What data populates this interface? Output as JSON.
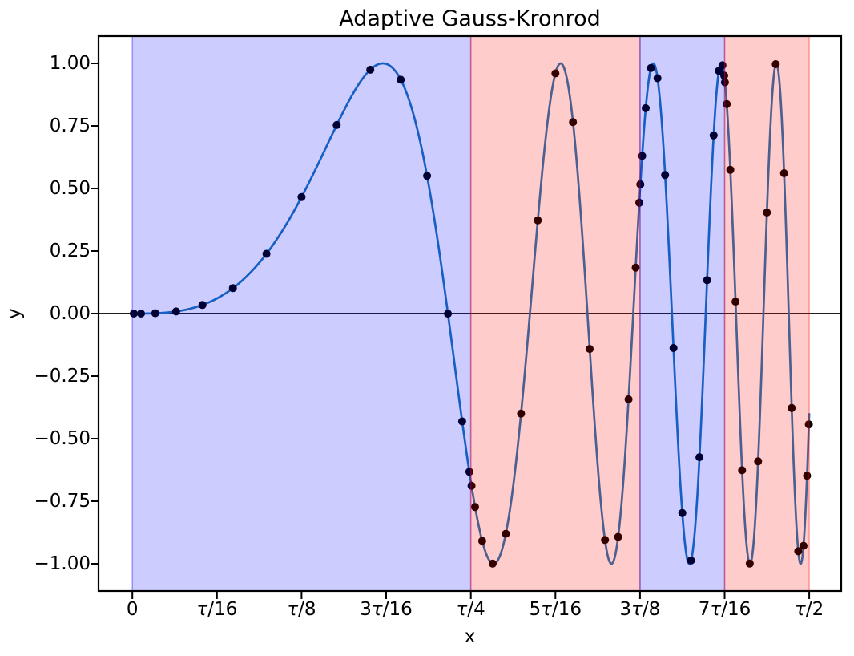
{
  "chart_data": {
    "type": "line",
    "title": "Adaptive Gauss-Kronrod",
    "xlabel": "x",
    "ylabel": "y",
    "function": "sin(x^3)",
    "x_domain_rad": [
      0,
      3.14159265
    ],
    "xlim_rad": [
      -0.157,
      3.29
    ],
    "ylim": [
      -1.109,
      1.109
    ],
    "grid": false,
    "legend": "none",
    "curve_color": "#1f77b4",
    "point_color": "#000000",
    "zero_line_color": "#000000",
    "region_alpha": 0.2,
    "region_colors": {
      "blue": "0,0,255",
      "red": "255,0,0"
    },
    "x_ticks": [
      {
        "v": 0.0,
        "label": "0"
      },
      {
        "v": 0.3926991,
        "label": "τ/16"
      },
      {
        "v": 0.7853982,
        "label": "τ/8"
      },
      {
        "v": 1.1780972,
        "label": "3τ/16"
      },
      {
        "v": 1.5707963,
        "label": "τ/4"
      },
      {
        "v": 1.9634954,
        "label": "5τ/16"
      },
      {
        "v": 2.3561945,
        "label": "3τ/8"
      },
      {
        "v": 2.7488936,
        "label": "7τ/16"
      },
      {
        "v": 3.1415927,
        "label": "τ/2"
      }
    ],
    "y_ticks": [
      {
        "v": 1.0,
        "label": "1.00"
      },
      {
        "v": 0.75,
        "label": "0.75"
      },
      {
        "v": 0.5,
        "label": "0.50"
      },
      {
        "v": 0.25,
        "label": "0.25"
      },
      {
        "v": 0.0,
        "label": "0.00"
      },
      {
        "v": -0.25,
        "label": "−0.25"
      },
      {
        "v": -0.5,
        "label": "−0.50"
      },
      {
        "v": -0.75,
        "label": "−0.75"
      },
      {
        "v": -1.0,
        "label": "−1.00"
      }
    ],
    "regions": [
      {
        "start_rad": 0.0,
        "end_rad": 1.5707963,
        "color": "blue",
        "span": "0 to τ/4"
      },
      {
        "start_rad": 1.5707963,
        "end_rad": 2.3561945,
        "color": "red",
        "span": "τ/4 to 3τ/8"
      },
      {
        "start_rad": 2.3561945,
        "end_rad": 2.7488936,
        "color": "blue",
        "span": "3τ/8 to 7τ/16"
      },
      {
        "start_rad": 2.7488936,
        "end_rad": 3.1415927,
        "color": "red",
        "span": "7τ/16 to τ/2"
      }
    ],
    "evaluation_points": [
      [
        0.00671,
        0.0
      ],
      [
        0.03997,
        0.0001
      ],
      [
        0.10614,
        0.0012
      ],
      [
        0.20301,
        0.0084
      ],
      [
        0.32511,
        0.0344
      ],
      [
        0.46668,
        0.1016
      ],
      [
        0.62233,
        0.2387
      ],
      [
        0.7854,
        0.4657
      ],
      [
        0.94857,
        0.7536
      ],
      [
        1.10412,
        0.9746
      ],
      [
        1.24569,
        0.9347
      ],
      [
        1.36779,
        0.5502
      ],
      [
        1.46466,
        -0.0004
      ],
      [
        1.53083,
        -0.4312
      ],
      [
        1.56409,
        -0.6325
      ],
      [
        1.57415,
        -0.6883
      ],
      [
        1.59078,
        -0.7731
      ],
      [
        1.62387,
        -0.9088
      ],
      [
        1.67229,
        -0.9994
      ],
      [
        1.73333,
        -0.8802
      ],
      [
        1.80412,
        -0.3996
      ],
      [
        1.8819,
        0.3725
      ],
      [
        1.9635,
        0.9599
      ],
      [
        2.0451,
        0.7653
      ],
      [
        2.12288,
        -0.1414
      ],
      [
        2.19367,
        -0.9049
      ],
      [
        2.25471,
        -0.8927
      ],
      [
        2.30313,
        -0.3425
      ],
      [
        2.33622,
        0.1837
      ],
      [
        2.35285,
        0.4429
      ],
      [
        2.35787,
        0.5162
      ],
      [
        2.36619,
        0.6301
      ],
      [
        2.38273,
        0.8209
      ],
      [
        2.40694,
        0.9815
      ],
      [
        2.43746,
        0.9406
      ],
      [
        2.47285,
        0.5534
      ],
      [
        2.51174,
        -0.1378
      ],
      [
        2.55254,
        -0.7975
      ],
      [
        2.59334,
        -0.9868
      ],
      [
        2.63223,
        -0.5742
      ],
      [
        2.66762,
        0.1334
      ],
      [
        2.69814,
        0.7123
      ],
      [
        2.72235,
        0.9701
      ],
      [
        2.73889,
        0.9922
      ],
      [
        2.74721,
        0.9511
      ],
      [
        2.75057,
        0.9245
      ],
      [
        2.75889,
        0.8372
      ],
      [
        2.77543,
        0.5743
      ],
      [
        2.79964,
        0.0477
      ],
      [
        2.83016,
        -0.6263
      ],
      [
        2.86555,
        -0.9995
      ],
      [
        2.90444,
        -0.5907
      ],
      [
        2.94524,
        0.4037
      ],
      [
        2.98604,
        0.9969
      ],
      [
        3.02493,
        0.5609
      ],
      [
        3.06032,
        -0.3776
      ],
      [
        3.09084,
        -0.9499
      ],
      [
        3.11505,
        -0.9283
      ],
      [
        3.13159,
        -0.6481
      ],
      [
        3.13991,
        -0.443
      ]
    ]
  }
}
